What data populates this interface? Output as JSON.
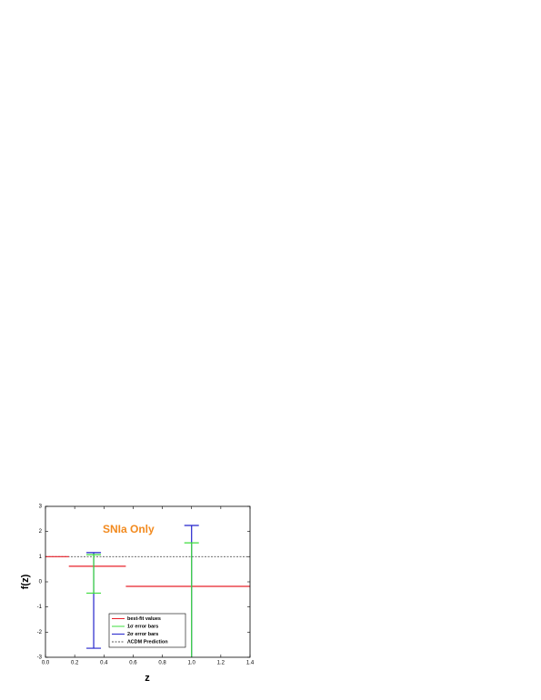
{
  "chart_data": {
    "type": "errorbar",
    "annotation": "SNIa Only",
    "xlabel": "z",
    "ylabel": "f(z)",
    "xlim": [
      0,
      1.4
    ],
    "ylim": [
      -3,
      3
    ],
    "xticks": [
      {
        "value": 0,
        "label": "0.0"
      },
      {
        "value": 0.2,
        "label": "0.2"
      },
      {
        "value": 0.4,
        "label": "0.4"
      },
      {
        "value": 0.6,
        "label": "0.6"
      },
      {
        "value": 0.8,
        "label": "0.8"
      },
      {
        "value": 1,
        "label": "1.0"
      },
      {
        "value": 1.2,
        "label": "1.2"
      },
      {
        "value": 1.4,
        "label": "1.4"
      }
    ],
    "yticks": [
      -3,
      -2,
      -1,
      0,
      1,
      2,
      3
    ],
    "series": [
      {
        "name": "best-fit values",
        "color": "#e8202a",
        "bins": [
          0,
          0.16,
          0.55,
          1.4
        ],
        "values": [
          1.0,
          0.62,
          -0.18
        ]
      },
      {
        "name": "1σ error bars",
        "color": "#3ddc3d",
        "x": [
          0.33,
          1.0
        ],
        "lower": [
          -0.45,
          null
        ],
        "upper": [
          1.08,
          1.55
        ]
      },
      {
        "name": "2σ error bars",
        "color": "#2323cc",
        "x": [
          0.33,
          1.0
        ],
        "lower": [
          -2.64,
          null
        ],
        "upper": [
          1.16,
          2.24
        ]
      },
      {
        "name": "ΛCDM Prediction",
        "color": "#555555",
        "value": 1,
        "style": "dashed"
      }
    ]
  }
}
